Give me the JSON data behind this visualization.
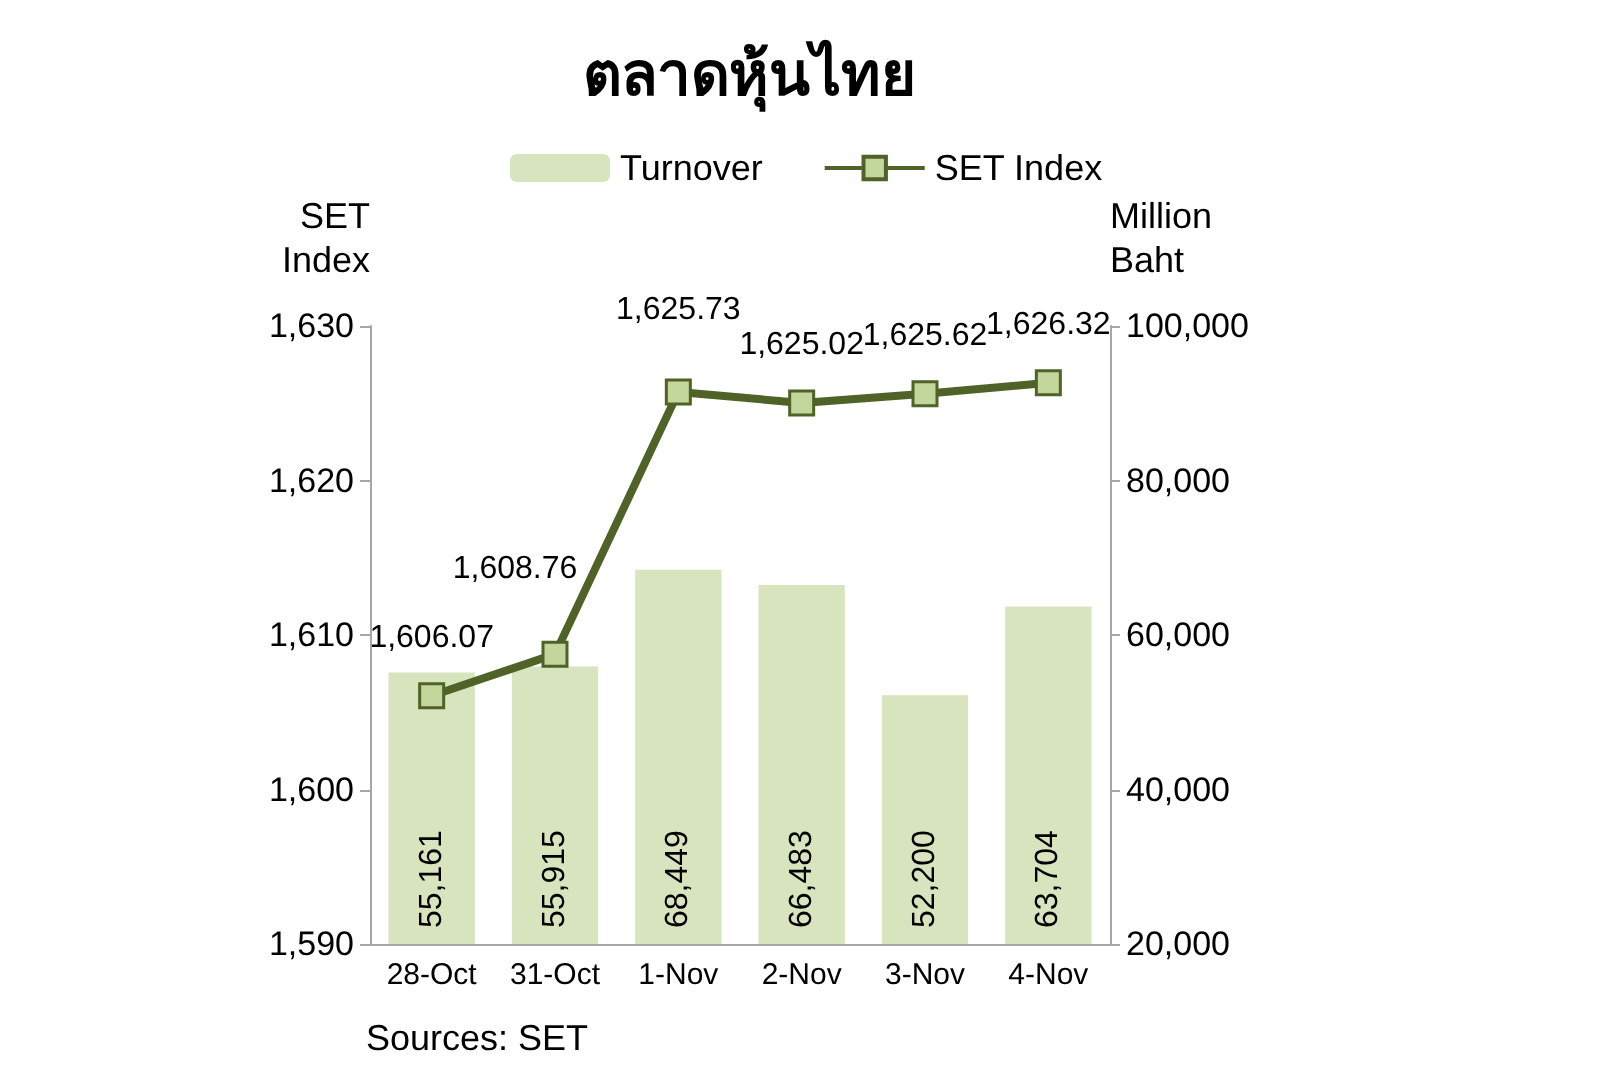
{
  "chart_data": {
    "type": "bar",
    "title": "ตลาดหุ้นไทย",
    "ylabel": "SET Index",
    "y2label": "Million Baht",
    "categories": [
      "28-Oct",
      "31-Oct",
      "1-Nov",
      "2-Nov",
      "3-Nov",
      "4-Nov"
    ],
    "series": [
      {
        "name": "Turnover",
        "axis": "y2",
        "color": "#d7e4bd",
        "values": [
          55161,
          55915,
          68449,
          66483,
          52200,
          63704
        ],
        "value_labels": [
          "55,161",
          "55,915",
          "68,449",
          "66,483",
          "52,200",
          "63,704"
        ]
      },
      {
        "name": "SET Index",
        "type": "line",
        "color": "#4f6228",
        "values": [
          1606.07,
          1608.76,
          1625.73,
          1625.02,
          1625.62,
          1626.32
        ],
        "value_labels": [
          "1,606.07",
          "1,608.76",
          "1,625.73",
          "1,625.02",
          "1,625.62",
          "1,626.32"
        ]
      }
    ],
    "ylim": [
      1590,
      1630
    ],
    "yticks": [
      {
        "value": 1590,
        "label": "1,590"
      },
      {
        "value": 1600,
        "label": "1,600"
      },
      {
        "value": 1610,
        "label": "1,610"
      },
      {
        "value": 1620,
        "label": "1,620"
      },
      {
        "value": 1630,
        "label": "1,630"
      }
    ],
    "y2lim": [
      20000,
      100000
    ],
    "y2ticks": [
      {
        "value": 20000,
        "label": "20,000"
      },
      {
        "value": 40000,
        "label": "40,000"
      },
      {
        "value": 60000,
        "label": "60,000"
      },
      {
        "value": 80000,
        "label": "80,000"
      },
      {
        "value": 100000,
        "label": "100,000"
      }
    ],
    "legend": "top",
    "marker": "square",
    "annotations": [
      "Sources: SET"
    ]
  }
}
